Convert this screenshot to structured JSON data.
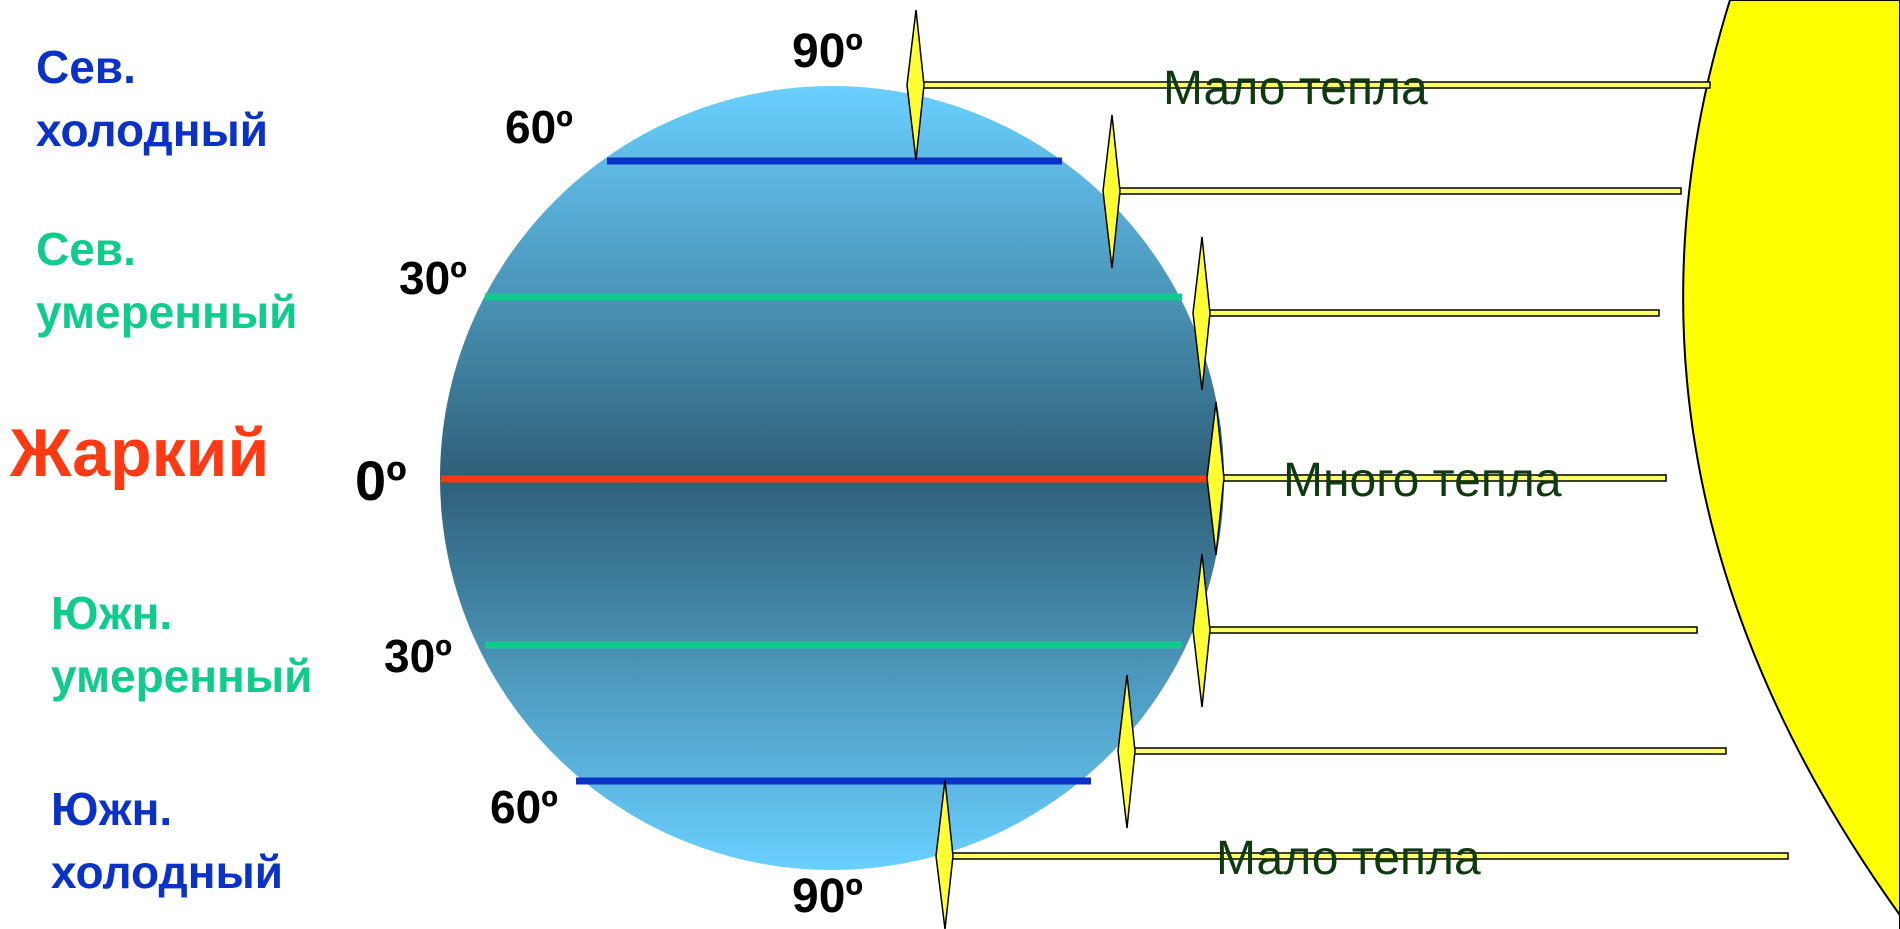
{
  "colors": {
    "polar": "#0a32c8",
    "temperate": "#10cc8c",
    "tropical": "#ff3a12",
    "sun": "#ffff00",
    "ray": "#ffff66",
    "heat_text": "#0f3a10",
    "globe_edge": "#66ccff",
    "globe_center": "#2e5f78"
  },
  "zones": {
    "north_cold": {
      "line1": "Сев.",
      "line2": "холодный"
    },
    "north_temperate": {
      "line1": "Сев.",
      "line2": "умеренный"
    },
    "hot": {
      "label": "Жаркий"
    },
    "south_temperate": {
      "line1": "Южн.",
      "line2": "умеренный"
    },
    "south_cold": {
      "line1": "Южн.",
      "line2": "холодный"
    }
  },
  "degrees": {
    "north_pole": "90º",
    "north_60": "60º",
    "north_30": "30º",
    "equator": "0º",
    "south_30": "30º",
    "south_60": "60º",
    "south_pole": "90º"
  },
  "heat": {
    "north_little": "Мало тепла",
    "much": "Много тепла",
    "south_little": "Мало тепла"
  }
}
